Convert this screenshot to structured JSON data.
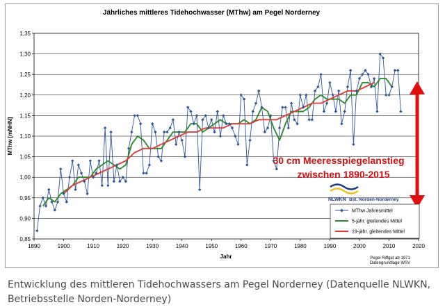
{
  "chart_data": {
    "type": "line",
    "title": "Jährliches mittleres Tidehochwasser (MThw) am Pegel Norderney",
    "xlabel": "Jahr",
    "ylabel": "MThw [mNHN]",
    "xlim": [
      1890,
      2020
    ],
    "ylim": [
      0.85,
      1.35
    ],
    "x_ticks": [
      "1890",
      "1900",
      "1910",
      "1920",
      "1930",
      "1940",
      "1950",
      "1960",
      "1970",
      "1980",
      "1990",
      "2000",
      "2010",
      "2020"
    ],
    "y_ticks": [
      "0,85",
      "0,90",
      "0,95",
      "1,00",
      "1,05",
      "1,10",
      "1,15",
      "1,20",
      "1,25",
      "1,30",
      "1,35"
    ],
    "grid": "horizontal",
    "legend_position": "bottom-right",
    "series": [
      {
        "name": "MThw Jahresmittel",
        "color": "#2f5597",
        "marker": "diamond",
        "x": [
          1891,
          1892,
          1893,
          1894,
          1895,
          1896,
          1897,
          1898,
          1899,
          1900,
          1901,
          1902,
          1903,
          1904,
          1905,
          1906,
          1907,
          1908,
          1909,
          1910,
          1911,
          1912,
          1913,
          1914,
          1915,
          1916,
          1917,
          1918,
          1919,
          1920,
          1921,
          1922,
          1923,
          1924,
          1925,
          1926,
          1927,
          1928,
          1929,
          1930,
          1931,
          1932,
          1933,
          1934,
          1935,
          1936,
          1937,
          1938,
          1939,
          1940,
          1941,
          1942,
          1943,
          1944,
          1945,
          1946,
          1947,
          1948,
          1949,
          1950,
          1951,
          1952,
          1953,
          1954,
          1955,
          1956,
          1957,
          1958,
          1959,
          1960,
          1961,
          1962,
          1963,
          1964,
          1965,
          1966,
          1967,
          1968,
          1969,
          1970,
          1971,
          1972,
          1973,
          1974,
          1975,
          1976,
          1977,
          1978,
          1979,
          1980,
          1981,
          1982,
          1983,
          1984,
          1985,
          1986,
          1987,
          1988,
          1989,
          1990,
          1991,
          1992,
          1993,
          1994,
          1995,
          1996,
          1997,
          1998,
          1999,
          2000,
          2001,
          2002,
          2003,
          2004,
          2005,
          2006,
          2007,
          2008,
          2009,
          2010,
          2011,
          2012,
          2013,
          2014
        ],
        "values": [
          0.87,
          0.93,
          0.95,
          0.93,
          0.97,
          0.94,
          0.92,
          0.94,
          1.02,
          0.96,
          0.94,
          1.0,
          1.04,
          0.97,
          1.03,
          1.01,
          0.99,
          0.96,
          1.04,
          1.0,
          1.01,
          1.04,
          0.98,
          1.12,
          0.98,
          1.11,
          0.99,
          1.03,
          0.99,
          1.0,
          0.99,
          1.07,
          1.11,
          1.15,
          1.15,
          1.13,
          1.01,
          1.01,
          1.03,
          1.13,
          1.11,
          1.05,
          1.04,
          1.11,
          1.11,
          1.12,
          1.14,
          1.08,
          1.11,
          1.09,
          1.05,
          1.17,
          1.16,
          1.13,
          1.15,
          0.97,
          1.14,
          1.15,
          1.12,
          1.14,
          1.11,
          1.16,
          1.1,
          1.15,
          1.13,
          1.13,
          1.12,
          1.1,
          1.08,
          1.2,
          1.19,
          1.03,
          1.09,
          1.16,
          1.18,
          1.21,
          1.17,
          1.11,
          1.12,
          1.15,
          1.04,
          1.02,
          1.12,
          1.17,
          1.17,
          1.12,
          1.18,
          1.14,
          1.13,
          1.2,
          1.17,
          1.2,
          1.14,
          1.14,
          1.21,
          1.22,
          1.25,
          1.16,
          1.18,
          1.23,
          1.2,
          1.16,
          1.21,
          1.13,
          1.16,
          1.22,
          1.26,
          1.08,
          1.21,
          1.24,
          1.25,
          1.26,
          1.25,
          1.22,
          1.24,
          1.16,
          1.3,
          1.29,
          1.2,
          1.2,
          1.22,
          1.26,
          1.26,
          1.16
        ]
      },
      {
        "name": "5-jähr. gleitendes Mittel",
        "color": "#2e8b2e",
        "x": [
          1893,
          1895,
          1897,
          1899,
          1901,
          1903,
          1905,
          1907,
          1909,
          1911,
          1913,
          1915,
          1917,
          1919,
          1921,
          1923,
          1925,
          1927,
          1929,
          1931,
          1933,
          1935,
          1937,
          1939,
          1941,
          1943,
          1945,
          1947,
          1949,
          1951,
          1953,
          1955,
          1957,
          1959,
          1961,
          1963,
          1965,
          1967,
          1969,
          1971,
          1973,
          1975,
          1977,
          1979,
          1981,
          1983,
          1985,
          1987,
          1989,
          1991,
          1993,
          1995,
          1997,
          1999,
          2001,
          2003,
          2005,
          2007,
          2009,
          2011
        ],
        "values": [
          0.93,
          0.95,
          0.94,
          0.96,
          0.97,
          0.98,
          1.0,
          1.0,
          1.0,
          1.02,
          1.03,
          1.04,
          1.03,
          1.02,
          1.03,
          1.08,
          1.1,
          1.09,
          1.07,
          1.07,
          1.07,
          1.09,
          1.11,
          1.11,
          1.11,
          1.13,
          1.13,
          1.11,
          1.12,
          1.13,
          1.14,
          1.13,
          1.13,
          1.13,
          1.14,
          1.13,
          1.14,
          1.17,
          1.16,
          1.12,
          1.09,
          1.13,
          1.16,
          1.16,
          1.16,
          1.17,
          1.19,
          1.2,
          1.19,
          1.19,
          1.19,
          1.18,
          1.2,
          1.2,
          1.23,
          1.23,
          1.22,
          1.24,
          1.24,
          1.22
        ]
      },
      {
        "name": "19-jähr. gleitendes Mittel",
        "color": "#e03c3c",
        "x": [
          1900,
          1903,
          1906,
          1909,
          1912,
          1915,
          1918,
          1921,
          1924,
          1927,
          1930,
          1933,
          1936,
          1939,
          1942,
          1945,
          1948,
          1951,
          1954,
          1957,
          1960,
          1963,
          1966,
          1969,
          1972,
          1975,
          1978,
          1981,
          1984,
          1987,
          1990,
          1993,
          1996,
          1999,
          2002,
          2005
        ],
        "values": [
          0.96,
          0.98,
          0.99,
          1.0,
          1.01,
          1.02,
          1.03,
          1.04,
          1.06,
          1.07,
          1.07,
          1.08,
          1.09,
          1.1,
          1.11,
          1.11,
          1.12,
          1.12,
          1.12,
          1.13,
          1.13,
          1.13,
          1.14,
          1.14,
          1.14,
          1.15,
          1.16,
          1.17,
          1.18,
          1.18,
          1.19,
          1.2,
          1.21,
          1.21,
          1.22,
          1.23
        ]
      }
    ]
  },
  "annotation": {
    "line1": "30 cm Meeresspiegelanstieg",
    "line2": "zwischen 1890-2015",
    "arrow_color": "#e01010",
    "text_color": "#d01010"
  },
  "logo": {
    "name": "NLWKN",
    "subtitle": "Bst. Norden-Norderney"
  },
  "notes": {
    "line1": "Pegel Riffgat ab 1971",
    "line2": "Datengrundlage WSV"
  },
  "caption": {
    "line1": "Entwicklung des mittleren Tidehochwassers am Pegel Norderney (Datenquelle NLWKN,",
    "line2": "Betriebsstelle Norden-Norderney)"
  }
}
